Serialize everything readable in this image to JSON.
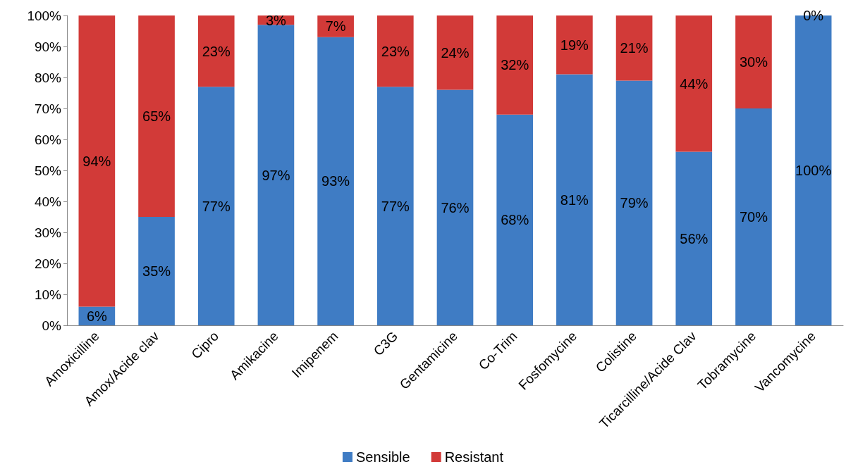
{
  "chart_data": {
    "type": "bar",
    "stacked": true,
    "categories": [
      "Amoxicilline",
      "Amox/Acide clav",
      "Cipro",
      "Amikacine",
      "Imipenem",
      "C3G",
      "Gentamicine",
      "Co-Trim",
      "Fosfomycine",
      "Colistine",
      "Ticarcilline/Acide Clav",
      "Tobramycine",
      "Vancomycine"
    ],
    "series": [
      {
        "name": "Sensible",
        "color": "#3f7cc4",
        "values": [
          6,
          35,
          77,
          97,
          93,
          77,
          76,
          68,
          81,
          79,
          56,
          70,
          100
        ],
        "value_labels": [
          "6%",
          "35%",
          "77%",
          "97%",
          "93%",
          "77%",
          "76%",
          "68%",
          "81%",
          "79%",
          "56%",
          "70%",
          "100%"
        ]
      },
      {
        "name": "Resistant",
        "color": "#d23a38",
        "values": [
          94,
          65,
          23,
          3,
          7,
          23,
          24,
          32,
          19,
          21,
          44,
          30,
          0
        ],
        "value_labels": [
          "94%",
          "65%",
          "23%",
          "3%",
          "7%",
          "23%",
          "24%",
          "32%",
          "19%",
          "21%",
          "44%",
          "30%",
          "0%"
        ]
      }
    ],
    "ylim": [
      0,
      100
    ],
    "yticks": [
      {
        "value": 0,
        "label": "0%"
      },
      {
        "value": 10,
        "label": "10%"
      },
      {
        "value": 20,
        "label": "20%"
      },
      {
        "value": 30,
        "label": "30%"
      },
      {
        "value": 40,
        "label": "40%"
      },
      {
        "value": 50,
        "label": "50%"
      },
      {
        "value": 60,
        "label": "60%"
      },
      {
        "value": 70,
        "label": "70%"
      },
      {
        "value": 80,
        "label": "80%"
      },
      {
        "value": 90,
        "label": "90%"
      },
      {
        "value": 100,
        "label": "100%"
      }
    ],
    "grid": false,
    "legend": "bottom"
  }
}
